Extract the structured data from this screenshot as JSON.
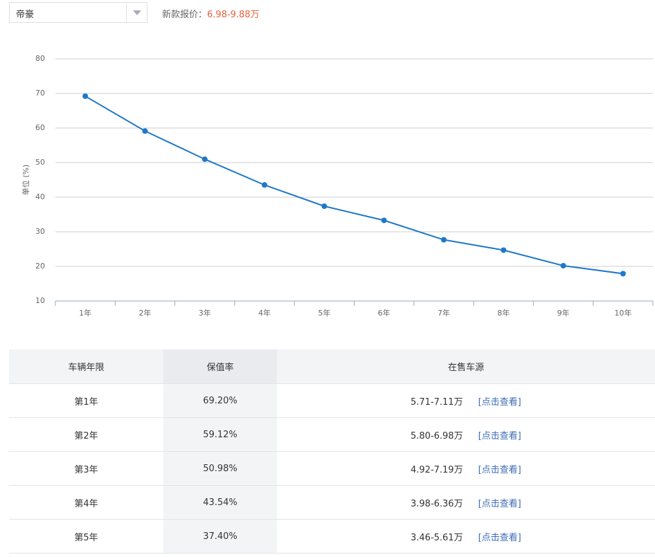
{
  "header": {
    "select": "帝豪",
    "price_label": "新款报价：",
    "price": "6.98-9.88万"
  },
  "chart_data": {
    "type": "line",
    "y_label": "单位 (%)",
    "categories": [
      "1年",
      "2年",
      "3年",
      "4年",
      "5年",
      "6年",
      "7年",
      "8年",
      "9年",
      "10年"
    ],
    "values": [
      69.2,
      59.12,
      50.98,
      43.54,
      37.4,
      33.3,
      27.7,
      24.7,
      20.2,
      17.9
    ],
    "color": "#1f78c8",
    "ylim": [
      10,
      80
    ],
    "yticks": [
      10,
      20,
      30,
      40,
      50,
      60,
      70,
      80
    ],
    "grid": true
  },
  "table": {
    "header": [
      "车辆年限",
      "保值率",
      "在售车源"
    ],
    "rows": [
      [
        "第1年",
        "69.20%",
        "5.71-7.11万",
        "[点击查看]"
      ],
      [
        "第2年",
        "59.12%",
        "5.80-6.98万",
        "[点击查看]"
      ],
      [
        "第3年",
        "50.98%",
        "4.92-7.19万",
        "[点击查看]"
      ],
      [
        "第4年",
        "43.54%",
        "3.98-6.36万",
        "[点击查看]"
      ],
      [
        "第5年",
        "37.40%",
        "3.46-5.61万",
        "[点击查看]"
      ]
    ]
  }
}
